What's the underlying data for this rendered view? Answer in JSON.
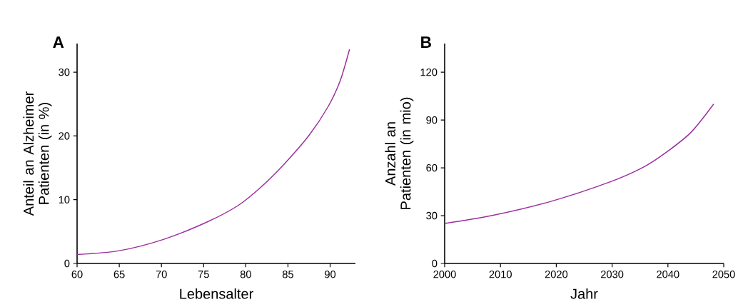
{
  "chart_data": [
    {
      "type": "line",
      "title": "A",
      "xlabel": "Lebensalter",
      "ylabel": "Anteil an Alzheimer Patienten (in %)",
      "xlim": [
        60,
        93
      ],
      "ylim": [
        0,
        34.5
      ],
      "xticks": [
        60,
        65,
        70,
        75,
        80,
        85,
        90
      ],
      "yticks": [
        0,
        10,
        20,
        30
      ],
      "series": [
        {
          "color": "#9b2f9e",
          "x": [
            60,
            65,
            70.3,
            75.4,
            79.1,
            81.9,
            84.7,
            87.5,
            89.8,
            91.2,
            92.3
          ],
          "values": [
            1.4,
            2.0,
            3.8,
            6.5,
            9.1,
            12.1,
            15.8,
            20.1,
            24.7,
            28.7,
            33.6
          ]
        }
      ]
    },
    {
      "type": "line",
      "title": "B",
      "xlabel": "Jahr",
      "ylabel": "Anzahl an Patienten (in mio)",
      "xlim": [
        2000,
        2050
      ],
      "ylim": [
        0,
        138
      ],
      "xticks": [
        2000,
        2010,
        2020,
        2030,
        2040,
        2050
      ],
      "yticks": [
        0,
        30,
        60,
        90,
        120
      ],
      "series": [
        {
          "color": "#9b2f9e",
          "x": [
            2000,
            2008.4,
            2018.7,
            2029.5,
            2035.8,
            2040,
            2044.2,
            2048.2
          ],
          "values": [
            25.1,
            30.0,
            38.6,
            51,
            60.8,
            70.5,
            82.5,
            100
          ]
        }
      ]
    }
  ]
}
